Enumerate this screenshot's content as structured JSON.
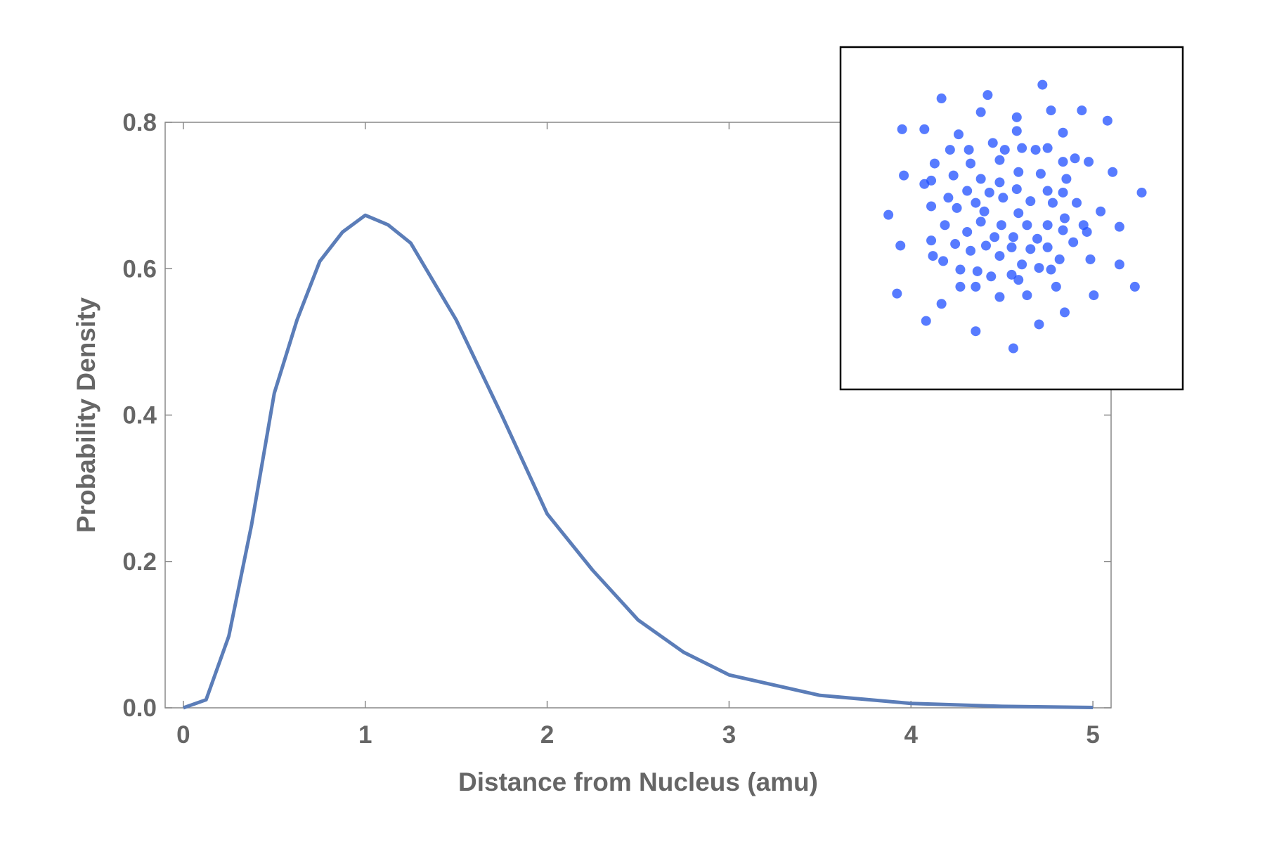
{
  "chart_data": [
    {
      "type": "line",
      "x_label": "Distance from Nucleus (amu)",
      "y_label": "Probability Density",
      "x": [
        0,
        0.125,
        0.25,
        0.375,
        0.5,
        0.625,
        0.75,
        0.875,
        1,
        1.125,
        1.25,
        1.5,
        1.75,
        2,
        2.25,
        2.5,
        2.75,
        3,
        3.5,
        4,
        4.5,
        5
      ],
      "values": [
        0,
        0.011,
        0.098,
        0.25,
        0.43,
        0.53,
        0.61,
        0.65,
        0.673,
        0.66,
        0.635,
        0.53,
        0.4,
        0.265,
        0.188,
        0.12,
        0.076,
        0.045,
        0.017,
        0.006,
        0.002,
        0.0005
      ],
      "color": "#5b7db8",
      "xlim": [
        -0.1,
        5.1
      ],
      "xticks": [
        0,
        1,
        2,
        3,
        4,
        5
      ],
      "ylim": [
        0,
        0.8
      ],
      "yticks": [
        {
          "value": 0,
          "label": "0.0"
        },
        0.2,
        0.4,
        0.6,
        0.8
      ]
    },
    {
      "type": "scatter",
      "x": [
        0.18,
        -0.14,
        -0.41,
        -0.18,
        0.23,
        0.41,
        0.56,
        -0.64,
        -0.51,
        0.03,
        0.03,
        -0.31,
        0.3,
        -0.11,
        -0.36,
        -0.25,
        0.06,
        0.21,
        0.14,
        -0.04,
        0.37,
        0.3,
        0.45,
        -0.45,
        -0.24,
        -0.07,
        -0.63,
        -0.47,
        -0.34,
        -0.18,
        -0.07,
        0.04,
        0.17,
        0.32,
        0.59,
        0.76,
        -0.26,
        -0.13,
        0.03,
        0.21,
        -0.37,
        -0.51,
        -0.21,
        -0.05,
        0.11,
        0.3,
        -0.47,
        -0.32,
        -0.16,
        0.04,
        0.24,
        0.38,
        0.52,
        -0.72,
        -0.39,
        -0.18,
        -0.06,
        0.09,
        0.21,
        0.31,
        0.42,
        0.63,
        -0.26,
        -0.1,
        0.01,
        0.15,
        0.3,
        -0.47,
        -0.33,
        -0.65,
        -0.15,
        0.0,
        0.21,
        0.36,
        0.44,
        -0.24,
        -0.07,
        0.11,
        -0.46,
        -0.4,
        0.28,
        0.46,
        0.06,
        0.63,
        -0.3,
        -0.2,
        0.0,
        0.16,
        0.23,
        -0.12,
        0.04,
        -0.3,
        -0.21,
        -0.67,
        0.26,
        0.48,
        0.72,
        -0.07,
        0.09,
        -0.41,
        0.31,
        -0.5,
        0.16,
        -0.21,
        0.01
      ],
      "values": [
        0.78,
        0.72,
        0.7,
        0.62,
        0.63,
        0.63,
        0.57,
        0.52,
        0.52,
        0.59,
        0.51,
        0.49,
        0.5,
        0.44,
        0.4,
        0.4,
        0.41,
        0.41,
        0.4,
        0.4,
        0.35,
        0.33,
        0.33,
        0.32,
        0.32,
        0.34,
        0.25,
        0.22,
        0.25,
        0.23,
        0.21,
        0.27,
        0.26,
        0.23,
        0.27,
        0.15,
        0.16,
        0.15,
        0.17,
        0.16,
        0.12,
        0.2,
        0.09,
        0.12,
        0.1,
        0.15,
        0.07,
        0.06,
        0.04,
        0.03,
        0.09,
        0.09,
        0.04,
        0.02,
        -0.04,
        -0.02,
        -0.04,
        -0.04,
        -0.04,
        0.0,
        -0.04,
        -0.05,
        -0.08,
        -0.11,
        -0.11,
        -0.12,
        -0.07,
        -0.13,
        -0.15,
        -0.16,
        -0.16,
        -0.17,
        -0.17,
        -0.14,
        -0.08,
        -0.19,
        -0.22,
        -0.18,
        -0.22,
        -0.25,
        -0.24,
        -0.24,
        -0.27,
        -0.27,
        -0.3,
        -0.31,
        -0.33,
        -0.29,
        -0.3,
        -0.34,
        -0.36,
        -0.4,
        -0.4,
        -0.44,
        -0.4,
        -0.45,
        -0.4,
        -0.46,
        -0.45,
        -0.5,
        -0.55,
        -0.6,
        -0.62,
        -0.66,
        -0.76
      ],
      "color": "#1f4fff",
      "xlim": [
        -1,
        1
      ],
      "ylim": [
        -1,
        1
      ]
    }
  ]
}
